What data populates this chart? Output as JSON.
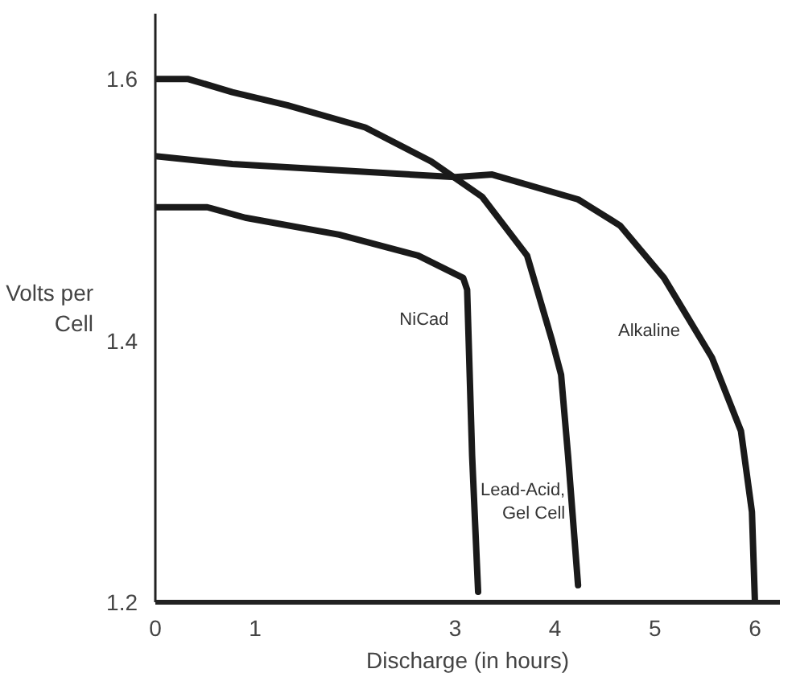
{
  "chart_data": {
    "type": "line",
    "xlabel": "Discharge (in hours)",
    "ylabel": "Volts per\nCell",
    "xlim": [
      0,
      6.25
    ],
    "ylim": [
      1.2,
      1.65
    ],
    "xticks": [
      0,
      1,
      3,
      4,
      5,
      6
    ],
    "yticks": [
      1.2,
      1.4,
      1.6
    ],
    "grid": false,
    "legend": false,
    "marker": "none",
    "line_style": "solid",
    "series": [
      {
        "name": "Lead-Acid,\nGel Cell",
        "color": "#1a1a1a",
        "x": [
          0,
          0.33,
          0.77,
          1.32,
          2.1,
          2.76,
          3.27,
          3.72,
          3.97,
          4.06,
          4.13,
          4.23
        ],
        "values": [
          1.6,
          1.6,
          1.59,
          1.58,
          1.563,
          1.537,
          1.51,
          1.465,
          1.4,
          1.374,
          1.312,
          1.213
        ]
      },
      {
        "name": "Alkaline",
        "color": "#1a1a1a",
        "x": [
          0,
          0.77,
          3,
          3.37,
          4.23,
          4.65,
          5.09,
          5.57,
          5.86,
          5.97,
          6
        ],
        "values": [
          1.541,
          1.535,
          1.525,
          1.527,
          1.508,
          1.488,
          1.448,
          1.387,
          1.331,
          1.269,
          1.2
        ]
      },
      {
        "name": "NiCad",
        "color": "#1a1a1a",
        "x": [
          0,
          0.52,
          0.9,
          1.84,
          2.63,
          3.08,
          3.12,
          3.17,
          3.23
        ],
        "values": [
          1.502,
          1.502,
          1.494,
          1.481,
          1.465,
          1.448,
          1.439,
          1.312,
          1.208
        ]
      }
    ]
  }
}
